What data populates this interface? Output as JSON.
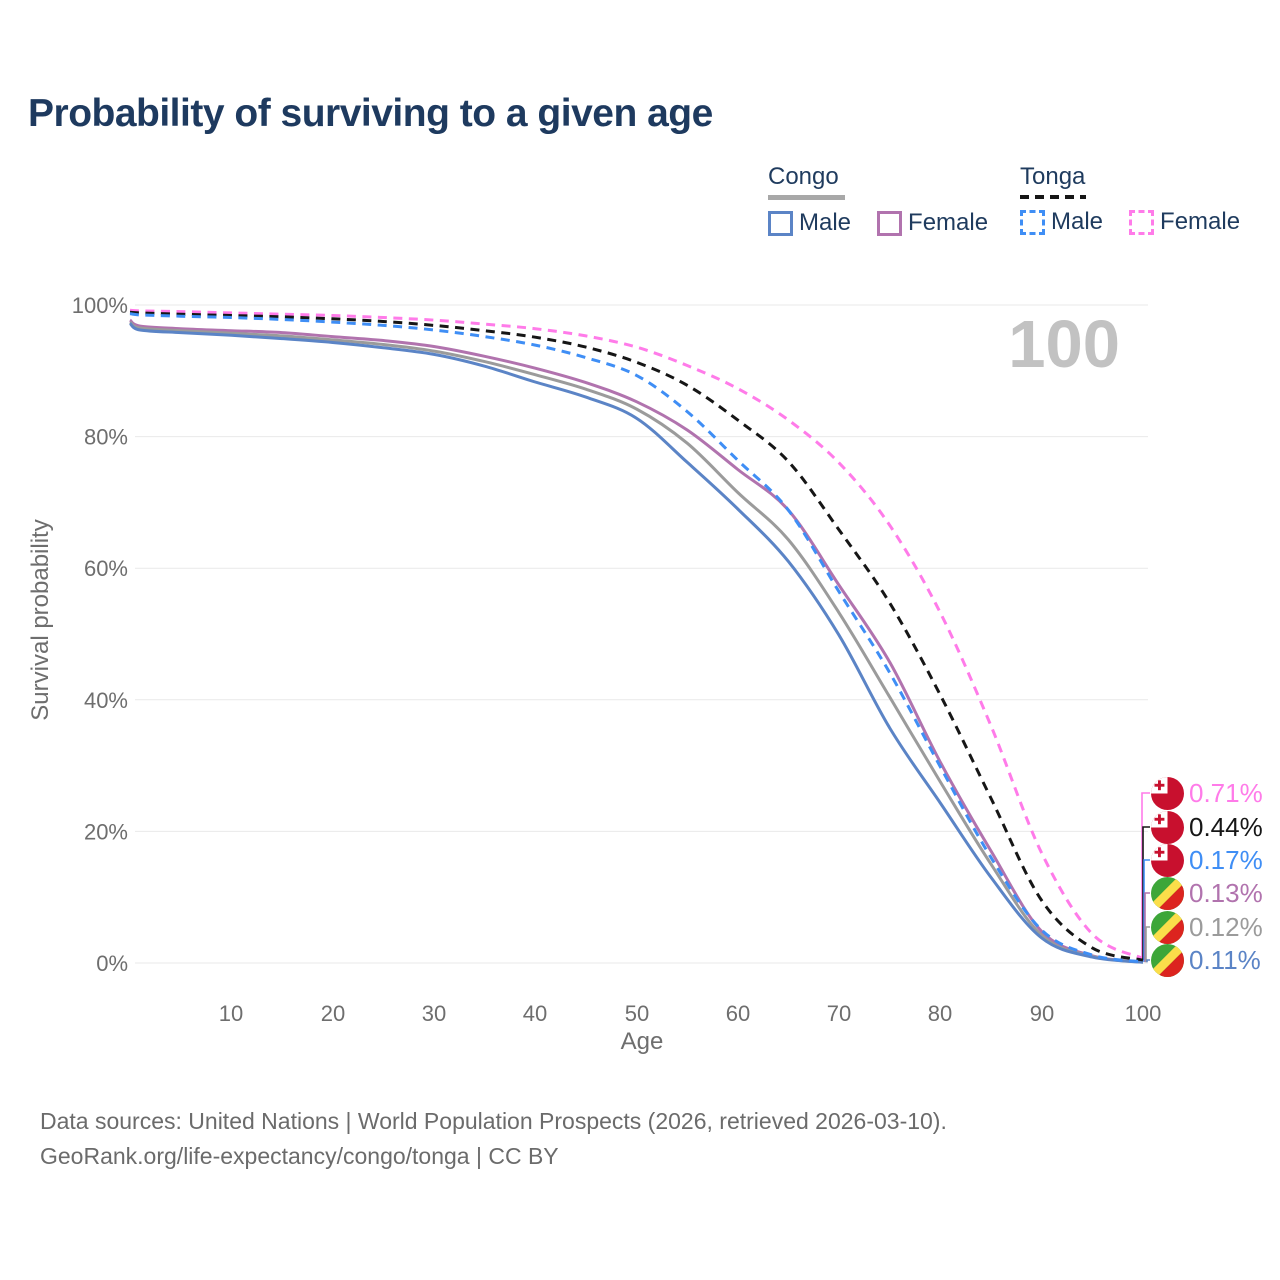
{
  "title": "Probability of surviving to a given age",
  "legend": {
    "groups": [
      {
        "name": "Congo",
        "line_style": "solid",
        "underline_color": "#A8A8A8",
        "items": [
          {
            "label": "Male",
            "color": "#5B84C6"
          },
          {
            "label": "Female",
            "color": "#B173AE"
          }
        ]
      },
      {
        "name": "Tonga",
        "line_style": "dashed",
        "underline_color": "#161616",
        "items": [
          {
            "label": "Male",
            "color": "#3F8EF5"
          },
          {
            "label": "Female",
            "color": "#FF7BE9"
          }
        ]
      }
    ]
  },
  "chart_data": {
    "type": "line",
    "title": "Probability of surviving to a given age",
    "xlabel": "Age",
    "ylabel": "Survival probability",
    "xlim": [
      0,
      100
    ],
    "ylim": [
      0,
      100
    ],
    "grid": "horizontal",
    "x_ticks": [
      10,
      20,
      30,
      40,
      50,
      60,
      70,
      80,
      90,
      100
    ],
    "y_tick_labels": [
      "0%",
      "20%",
      "40%",
      "60%",
      "80%",
      "100%"
    ],
    "watermark": "100",
    "x": [
      0,
      1,
      5,
      10,
      15,
      20,
      25,
      30,
      35,
      40,
      45,
      50,
      55,
      60,
      65,
      70,
      75,
      80,
      85,
      90,
      95,
      100
    ],
    "series": [
      {
        "name": "Tonga Female",
        "country": "Tonga",
        "sex": "Female",
        "color": "#FF7BE9",
        "dashed": true,
        "flag": "tonga",
        "values": [
          99.2,
          99.1,
          99.0,
          98.8,
          98.6,
          98.4,
          98.1,
          97.7,
          97.1,
          96.4,
          95.3,
          93.6,
          90.8,
          87.3,
          82.5,
          76.0,
          66.5,
          53.2,
          36.0,
          16.7,
          4.4,
          0.71
        ],
        "end_label": "0.71%"
      },
      {
        "name": "Tonga",
        "country": "Tonga",
        "sex": "Both",
        "color": "#161616",
        "dashed": true,
        "flag": "tonga",
        "values": [
          98.9,
          98.8,
          98.6,
          98.4,
          98.2,
          97.9,
          97.5,
          96.9,
          96.1,
          95.1,
          93.6,
          91.3,
          87.8,
          82.5,
          76.2,
          65.8,
          54.7,
          40.7,
          25.0,
          9.5,
          2.3,
          0.44
        ],
        "end_label": "0.44%"
      },
      {
        "name": "Tonga Male",
        "country": "Tonga",
        "sex": "Male",
        "color": "#3F8EF5",
        "dashed": true,
        "flag": "tonga",
        "values": [
          98.7,
          98.5,
          98.3,
          98.1,
          97.8,
          97.4,
          96.9,
          96.2,
          95.2,
          93.9,
          92.0,
          89.3,
          83.8,
          76.4,
          68.8,
          56.4,
          44.1,
          29.8,
          16.0,
          5.0,
          1.2,
          0.17
        ],
        "end_label": "0.17%"
      },
      {
        "name": "Congo Female",
        "country": "Congo",
        "sex": "Female",
        "color": "#B173AE",
        "dashed": false,
        "flag": "congo",
        "values": [
          97.7,
          96.8,
          96.4,
          96.1,
          95.8,
          95.2,
          94.6,
          93.7,
          92.2,
          90.4,
          88.2,
          85.3,
          81.0,
          75.0,
          68.8,
          57.4,
          45.7,
          30.5,
          17.0,
          4.8,
          1.1,
          0.13
        ],
        "end_label": "0.13%"
      },
      {
        "name": "Congo",
        "country": "Congo",
        "sex": "Both",
        "color": "#9B9B9B",
        "dashed": false,
        "flag": "congo",
        "values": [
          97.4,
          96.5,
          96.1,
          95.7,
          95.3,
          94.7,
          94.0,
          93.0,
          91.4,
          89.4,
          87.2,
          84.2,
          79.0,
          71.5,
          64.3,
          53.2,
          40.4,
          27.5,
          15.0,
          4.2,
          1.0,
          0.12
        ],
        "end_label": "0.12%"
      },
      {
        "name": "Congo Male",
        "country": "Congo",
        "sex": "Male",
        "color": "#5B84C6",
        "dashed": false,
        "flag": "congo",
        "values": [
          97.2,
          96.2,
          95.8,
          95.4,
          94.9,
          94.3,
          93.5,
          92.5,
          90.7,
          88.3,
          86.0,
          82.8,
          76.1,
          69.0,
          61.0,
          49.8,
          35.7,
          24.3,
          13.0,
          3.8,
          0.9,
          0.11
        ],
        "end_label": "0.11%"
      }
    ]
  },
  "flags": {
    "tonga": {
      "bg": "#C8102E",
      "canton": "#FFFFFF",
      "cross": "#C8102E"
    },
    "congo": {
      "green": "#3DA639",
      "yellow": "#FBDE4A",
      "red": "#DC241F"
    }
  },
  "footer": {
    "line1": "Data sources: United Nations | World Population Prospects (2026, retrieved 2026-03-10).",
    "line2": "GeoRank.org/life-expectancy/congo/tonga | CC BY"
  }
}
